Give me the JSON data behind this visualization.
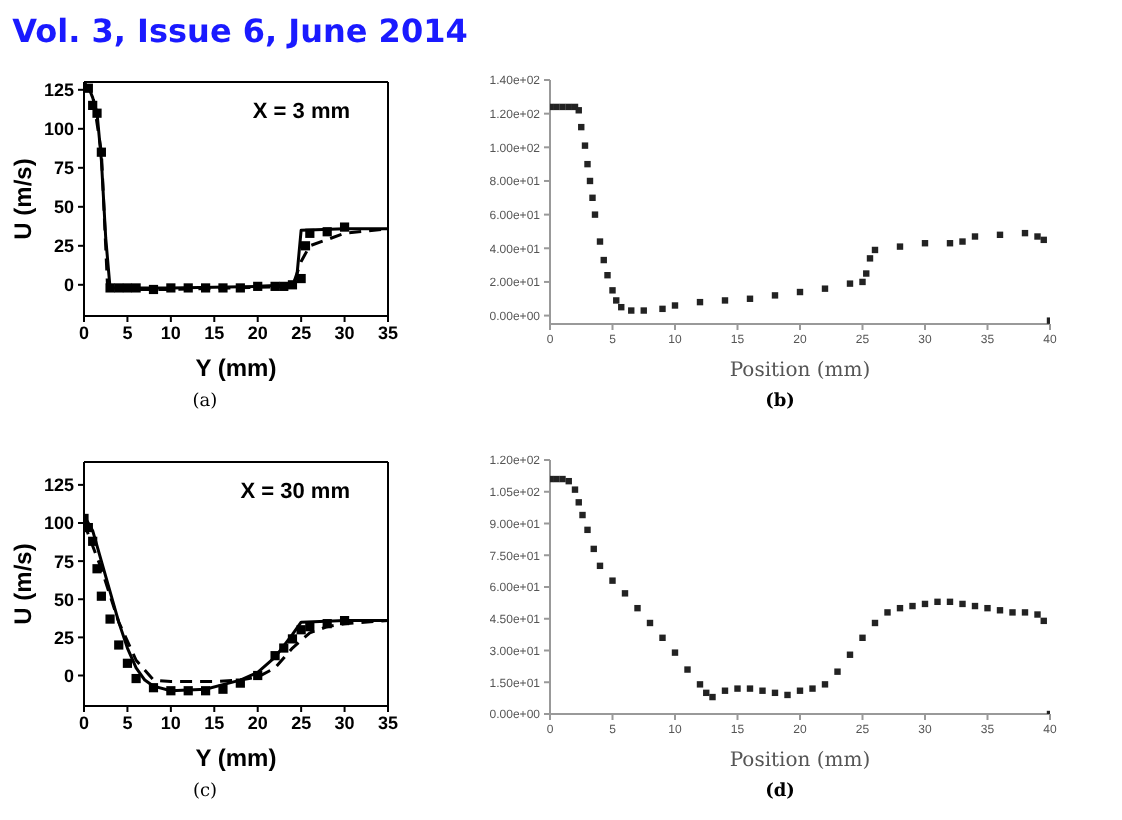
{
  "chart_data": [
    {
      "type": "line",
      "title": "Vol. 3, Issue 6, June 2014",
      "xlabel": "Y (mm)",
      "ylabel": "U (m/s)",
      "annotations": [
        "X = 3 mm",
        "(a)"
      ],
      "xlim": [
        0,
        35
      ],
      "xticks": [
        0,
        5,
        10,
        15,
        20,
        25,
        30,
        35
      ],
      "ylim": [
        -20,
        130
      ],
      "yticks": [
        0,
        25,
        50,
        75,
        100,
        125
      ],
      "series": [
        {
          "color": "#000000",
          "line_style": "solid",
          "x": [
            0,
            0.5,
            1,
            1.5,
            2,
            2.5,
            3,
            5,
            10,
            20,
            24,
            24.5,
            25,
            30,
            35
          ],
          "values": [
            128,
            127,
            120,
            110,
            80,
            30,
            -2,
            -2,
            -2,
            -1,
            0,
            5,
            35,
            36,
            36
          ]
        },
        {
          "color": "#000000",
          "line_style": "dashed",
          "x": [
            0,
            1,
            2,
            2.7,
            3,
            10,
            24,
            25,
            26,
            30,
            35
          ],
          "values": [
            130,
            122,
            85,
            0,
            -3,
            -3,
            -1,
            15,
            25,
            33,
            36
          ]
        },
        {
          "type": "scatter",
          "color": "#000000",
          "marker": "square",
          "x": [
            0.5,
            1,
            1.5,
            2,
            3,
            4,
            5,
            6,
            8,
            10,
            12,
            14,
            16,
            18,
            20,
            22,
            23,
            24,
            25,
            25.5,
            26,
            28,
            30
          ],
          "values": [
            126,
            115,
            110,
            85,
            -2,
            -2,
            -2,
            -2,
            -3,
            -2,
            -2,
            -2,
            -2,
            -2,
            -1,
            -1,
            -1,
            0,
            4,
            25,
            33,
            34,
            37
          ]
        }
      ]
    },
    {
      "type": "scatter",
      "xlabel": "Position (mm)",
      "annotations": [
        "(b)"
      ],
      "xlim": [
        0,
        40
      ],
      "xticks": [
        0,
        5,
        10,
        15,
        20,
        25,
        30,
        35,
        40
      ],
      "ylim": [
        -5,
        140
      ],
      "yticks": [
        {
          "value": 0,
          "label": "0.00e+00"
        },
        {
          "value": 20,
          "label": "2.00e+01"
        },
        {
          "value": 40,
          "label": "4.00e+01"
        },
        {
          "value": 60,
          "label": "6.00e+01"
        },
        {
          "value": 80,
          "label": "8.00e+01"
        },
        {
          "value": 100,
          "label": "1.00e+02"
        },
        {
          "value": 120,
          "label": "1.20e+02"
        },
        {
          "value": 140,
          "label": "1.40e+02"
        }
      ],
      "series": [
        {
          "color": "#222222",
          "marker": "square",
          "x": [
            0,
            0.5,
            1,
            1.5,
            2,
            2.3,
            2.5,
            2.8,
            3,
            3.2,
            3.4,
            3.6,
            4,
            4.3,
            4.6,
            5,
            5.3,
            5.7,
            6.5,
            7.5,
            9,
            10,
            12,
            14,
            16,
            18,
            20,
            22,
            24,
            25,
            25.3,
            25.6,
            26,
            28,
            30,
            32,
            33,
            34,
            36,
            38,
            39,
            39.5,
            40
          ],
          "values": [
            124,
            124,
            124,
            124,
            124,
            122,
            112,
            101,
            90,
            80,
            70,
            60,
            44,
            33,
            24,
            15,
            9,
            5,
            3,
            3,
            4,
            6,
            8,
            9,
            10,
            12,
            14,
            16,
            19,
            20,
            25,
            34,
            39,
            41,
            43,
            43,
            44,
            47,
            48,
            49,
            47,
            45,
            -3
          ]
        }
      ]
    },
    {
      "type": "line",
      "xlabel": "Y (mm)",
      "ylabel": "U (m/s)",
      "annotations": [
        "X = 30 mm",
        "(c)"
      ],
      "xlim": [
        0,
        35
      ],
      "xticks": [
        0,
        5,
        10,
        15,
        20,
        25,
        30,
        35
      ],
      "ylim": [
        -20,
        140
      ],
      "yticks": [
        0,
        25,
        50,
        75,
        100,
        125
      ],
      "series": [
        {
          "color": "#000000",
          "line_style": "solid",
          "x": [
            0,
            1,
            2,
            3,
            4,
            5,
            6,
            7,
            8,
            10,
            14,
            16,
            18,
            20,
            22,
            24,
            25,
            30,
            35
          ],
          "values": [
            105,
            95,
            75,
            55,
            35,
            18,
            5,
            -3,
            -7,
            -10,
            -9,
            -6,
            -3,
            2,
            12,
            27,
            35,
            36,
            36
          ]
        },
        {
          "color": "#000000",
          "line_style": "dashed",
          "x": [
            0,
            2,
            4,
            6,
            8,
            10,
            15,
            18,
            20,
            22,
            24,
            26,
            28,
            30,
            35
          ],
          "values": [
            100,
            70,
            35,
            10,
            -3,
            -4,
            -4,
            -3,
            -1,
            5,
            18,
            28,
            32,
            34,
            36
          ]
        },
        {
          "type": "scatter",
          "color": "#000000",
          "marker": "square",
          "x": [
            0,
            0.5,
            1,
            1.5,
            2,
            3,
            4,
            5,
            6,
            8,
            10,
            12,
            14,
            16,
            18,
            20,
            22,
            23,
            24,
            25,
            26,
            28,
            30
          ],
          "values": [
            103,
            97,
            88,
            70,
            52,
            37,
            20,
            8,
            -2,
            -8,
            -10,
            -10,
            -10,
            -9,
            -5,
            0,
            13,
            18,
            24,
            30,
            32,
            34,
            36
          ]
        }
      ]
    },
    {
      "type": "scatter",
      "xlabel": "Position (mm)",
      "annotations": [
        "(d)"
      ],
      "xlim": [
        0,
        40
      ],
      "xticks": [
        0,
        5,
        10,
        15,
        20,
        25,
        30,
        35,
        40
      ],
      "ylim": [
        0,
        120
      ],
      "yticks": [
        {
          "value": 0,
          "label": "0.00e+00"
        },
        {
          "value": 15,
          "label": "1.50e+01"
        },
        {
          "value": 30,
          "label": "3.00e+01"
        },
        {
          "value": 45,
          "label": "4.50e+01"
        },
        {
          "value": 60,
          "label": "6.00e+01"
        },
        {
          "value": 75,
          "label": "7.50e+01"
        },
        {
          "value": 90,
          "label": "9.00e+01"
        },
        {
          "value": 105,
          "label": "1.05e+02"
        },
        {
          "value": 120,
          "label": "1.20e+02"
        }
      ],
      "series": [
        {
          "color": "#222222",
          "marker": "square",
          "x": [
            0,
            0.5,
            1,
            1.5,
            2,
            2.3,
            2.6,
            3,
            3.5,
            4,
            5,
            6,
            7,
            8,
            9,
            10,
            11,
            12,
            12.5,
            13,
            14,
            15,
            16,
            17,
            18,
            19,
            20,
            21,
            22,
            23,
            24,
            25,
            26,
            27,
            28,
            29,
            30,
            31,
            32,
            33,
            34,
            35,
            36,
            37,
            38,
            39,
            39.5,
            40
          ],
          "values": [
            111,
            111,
            111,
            110,
            106,
            100,
            94,
            87,
            78,
            70,
            63,
            57,
            50,
            43,
            36,
            29,
            21,
            14,
            10,
            8,
            11,
            12,
            12,
            11,
            10,
            9,
            11,
            12,
            14,
            20,
            28,
            36,
            43,
            48,
            50,
            51,
            52,
            53,
            53,
            52,
            51,
            50,
            49,
            48,
            48,
            47,
            44,
            0
          ]
        }
      ]
    }
  ]
}
